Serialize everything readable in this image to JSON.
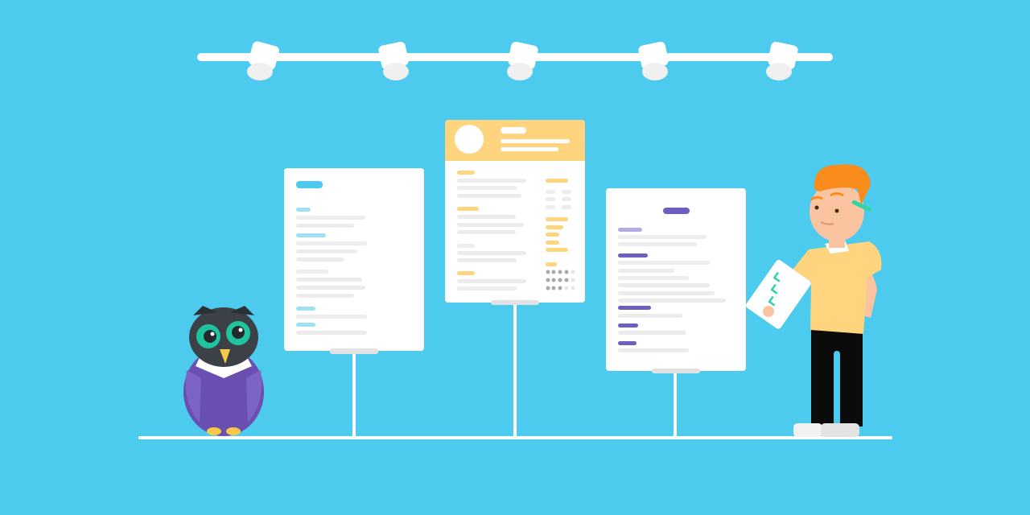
{
  "colors": {
    "background": "#4ccbee",
    "white": "#ffffff",
    "skeleton_gray": "#e7e7e7",
    "resume_blue_accent": "#4ccbee",
    "resume_yellow_accent": "#fed57e",
    "resume_purple_accent": "#6d5fbf",
    "owl_body": "#6a4fb0",
    "owl_head": "#3b4147",
    "owl_eyes": "#1fc39e",
    "owl_feet": "#f7c948",
    "person_hair": "#fa8c1c",
    "person_skin": "#fbc4a0",
    "person_shirt": "#fed57e",
    "person_pants": "#0b0b0b",
    "checkmark": "#2ed3a6"
  },
  "icons": [
    "spotlight-icon",
    "checklist-icon",
    "owl-mascot",
    "person-figure"
  ]
}
